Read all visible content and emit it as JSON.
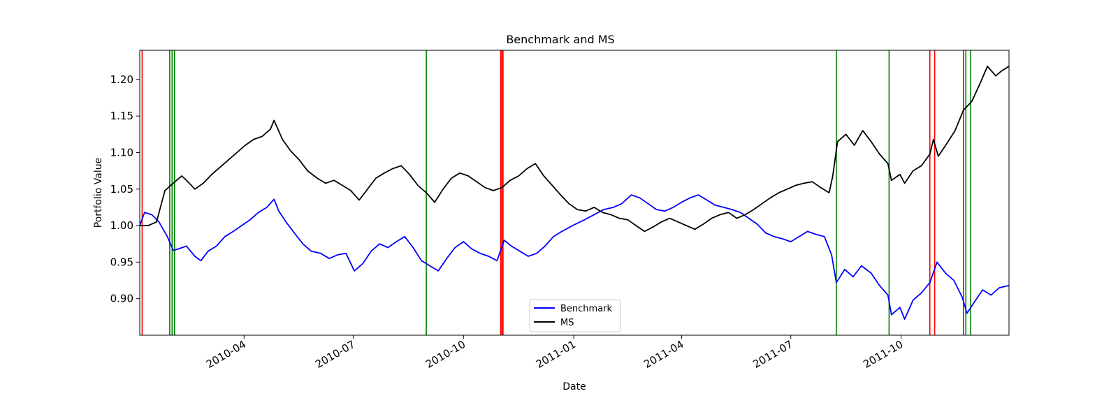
{
  "chart_data": {
    "type": "line",
    "title": "Benchmark and MS",
    "xlabel": "Date",
    "ylabel": "Portfolio Value",
    "xlim": [
      "2010-01-04",
      "2011-12-30"
    ],
    "ylim": [
      0.85,
      1.24
    ],
    "x_ticks": [
      "2010-04",
      "2010-07",
      "2010-10",
      "2011-01",
      "2011-04",
      "2011-07",
      "2011-10"
    ],
    "y_ticks": [
      "0.90",
      "0.95",
      "1.00",
      "1.05",
      "1.10",
      "1.15",
      "1.20"
    ],
    "grid": false,
    "legend": {
      "position": "lower-center",
      "entries": [
        "Benchmark",
        "MS"
      ]
    },
    "series": [
      {
        "name": "Benchmark",
        "color": "#0000ff",
        "points": [
          [
            "2010-01-04",
            1.0
          ],
          [
            "2010-01-08",
            1.018
          ],
          [
            "2010-01-14",
            1.015
          ],
          [
            "2010-01-20",
            1.005
          ],
          [
            "2010-01-27",
            0.985
          ],
          [
            "2010-02-01",
            0.966
          ],
          [
            "2010-02-05",
            0.968
          ],
          [
            "2010-02-12",
            0.972
          ],
          [
            "2010-02-19",
            0.958
          ],
          [
            "2010-02-24",
            0.952
          ],
          [
            "2010-03-02",
            0.965
          ],
          [
            "2010-03-09",
            0.972
          ],
          [
            "2010-03-16",
            0.985
          ],
          [
            "2010-03-23",
            0.992
          ],
          [
            "2010-03-30",
            1.0
          ],
          [
            "2010-04-06",
            1.008
          ],
          [
            "2010-04-13",
            1.018
          ],
          [
            "2010-04-20",
            1.025
          ],
          [
            "2010-04-26",
            1.036
          ],
          [
            "2010-04-30",
            1.02
          ],
          [
            "2010-05-06",
            1.005
          ],
          [
            "2010-05-12",
            0.992
          ],
          [
            "2010-05-20",
            0.975
          ],
          [
            "2010-05-27",
            0.965
          ],
          [
            "2010-06-04",
            0.962
          ],
          [
            "2010-06-11",
            0.955
          ],
          [
            "2010-06-18",
            0.96
          ],
          [
            "2010-06-25",
            0.962
          ],
          [
            "2010-07-02",
            0.938
          ],
          [
            "2010-07-09",
            0.948
          ],
          [
            "2010-07-16",
            0.965
          ],
          [
            "2010-07-23",
            0.975
          ],
          [
            "2010-07-30",
            0.97
          ],
          [
            "2010-08-06",
            0.978
          ],
          [
            "2010-08-13",
            0.985
          ],
          [
            "2010-08-20",
            0.97
          ],
          [
            "2010-08-27",
            0.952
          ],
          [
            "2010-09-03",
            0.945
          ],
          [
            "2010-09-10",
            0.938
          ],
          [
            "2010-09-17",
            0.955
          ],
          [
            "2010-09-24",
            0.97
          ],
          [
            "2010-10-01",
            0.978
          ],
          [
            "2010-10-08",
            0.968
          ],
          [
            "2010-10-15",
            0.962
          ],
          [
            "2010-10-22",
            0.958
          ],
          [
            "2010-10-29",
            0.952
          ],
          [
            "2010-11-04",
            0.98
          ],
          [
            "2010-11-10",
            0.972
          ],
          [
            "2010-11-17",
            0.965
          ],
          [
            "2010-11-24",
            0.958
          ],
          [
            "2010-12-01",
            0.962
          ],
          [
            "2010-12-08",
            0.972
          ],
          [
            "2010-12-15",
            0.985
          ],
          [
            "2010-12-22",
            0.992
          ],
          [
            "2010-12-31",
            1.0
          ],
          [
            "2011-01-10",
            1.008
          ],
          [
            "2011-01-18",
            1.015
          ],
          [
            "2011-01-26",
            1.022
          ],
          [
            "2011-02-03",
            1.025
          ],
          [
            "2011-02-10",
            1.03
          ],
          [
            "2011-02-18",
            1.042
          ],
          [
            "2011-02-25",
            1.038
          ],
          [
            "2011-03-04",
            1.03
          ],
          [
            "2011-03-11",
            1.022
          ],
          [
            "2011-03-18",
            1.02
          ],
          [
            "2011-03-25",
            1.025
          ],
          [
            "2011-04-01",
            1.032
          ],
          [
            "2011-04-08",
            1.038
          ],
          [
            "2011-04-15",
            1.042
          ],
          [
            "2011-04-22",
            1.035
          ],
          [
            "2011-04-29",
            1.028
          ],
          [
            "2011-05-06",
            1.025
          ],
          [
            "2011-05-13",
            1.022
          ],
          [
            "2011-05-20",
            1.018
          ],
          [
            "2011-05-27",
            1.01
          ],
          [
            "2011-06-03",
            1.002
          ],
          [
            "2011-06-10",
            0.99
          ],
          [
            "2011-06-17",
            0.985
          ],
          [
            "2011-06-24",
            0.982
          ],
          [
            "2011-07-01",
            0.978
          ],
          [
            "2011-07-08",
            0.985
          ],
          [
            "2011-07-15",
            0.992
          ],
          [
            "2011-07-22",
            0.988
          ],
          [
            "2011-07-29",
            0.985
          ],
          [
            "2011-08-04",
            0.96
          ],
          [
            "2011-08-08",
            0.922
          ],
          [
            "2011-08-15",
            0.94
          ],
          [
            "2011-08-22",
            0.93
          ],
          [
            "2011-08-29",
            0.945
          ],
          [
            "2011-09-06",
            0.935
          ],
          [
            "2011-09-13",
            0.918
          ],
          [
            "2011-09-20",
            0.905
          ],
          [
            "2011-09-23",
            0.878
          ],
          [
            "2011-09-30",
            0.888
          ],
          [
            "2011-10-04",
            0.872
          ],
          [
            "2011-10-11",
            0.898
          ],
          [
            "2011-10-18",
            0.908
          ],
          [
            "2011-10-25",
            0.922
          ],
          [
            "2011-10-31",
            0.95
          ],
          [
            "2011-11-07",
            0.935
          ],
          [
            "2011-11-14",
            0.925
          ],
          [
            "2011-11-21",
            0.902
          ],
          [
            "2011-11-25",
            0.88
          ],
          [
            "2011-12-01",
            0.895
          ],
          [
            "2011-12-08",
            0.912
          ],
          [
            "2011-12-15",
            0.905
          ],
          [
            "2011-12-22",
            0.915
          ],
          [
            "2011-12-30",
            0.918
          ]
        ]
      },
      {
        "name": "MS",
        "color": "#000000",
        "points": [
          [
            "2010-01-04",
            1.0
          ],
          [
            "2010-01-11",
            1.0
          ],
          [
            "2010-01-18",
            1.005
          ],
          [
            "2010-01-25",
            1.048
          ],
          [
            "2010-02-01",
            1.058
          ],
          [
            "2010-02-08",
            1.068
          ],
          [
            "2010-02-12",
            1.062
          ],
          [
            "2010-02-19",
            1.05
          ],
          [
            "2010-02-26",
            1.058
          ],
          [
            "2010-03-05",
            1.07
          ],
          [
            "2010-03-12",
            1.08
          ],
          [
            "2010-03-19",
            1.09
          ],
          [
            "2010-03-26",
            1.1
          ],
          [
            "2010-04-02",
            1.11
          ],
          [
            "2010-04-09",
            1.118
          ],
          [
            "2010-04-16",
            1.122
          ],
          [
            "2010-04-23",
            1.132
          ],
          [
            "2010-04-26",
            1.144
          ],
          [
            "2010-05-03",
            1.118
          ],
          [
            "2010-05-10",
            1.102
          ],
          [
            "2010-05-17",
            1.09
          ],
          [
            "2010-05-24",
            1.075
          ],
          [
            "2010-06-01",
            1.065
          ],
          [
            "2010-06-08",
            1.058
          ],
          [
            "2010-06-15",
            1.062
          ],
          [
            "2010-06-22",
            1.055
          ],
          [
            "2010-06-29",
            1.048
          ],
          [
            "2010-07-06",
            1.035
          ],
          [
            "2010-07-13",
            1.05
          ],
          [
            "2010-07-20",
            1.065
          ],
          [
            "2010-07-27",
            1.072
          ],
          [
            "2010-08-03",
            1.078
          ],
          [
            "2010-08-10",
            1.082
          ],
          [
            "2010-08-17",
            1.07
          ],
          [
            "2010-08-24",
            1.055
          ],
          [
            "2010-08-31",
            1.045
          ],
          [
            "2010-09-07",
            1.032
          ],
          [
            "2010-09-14",
            1.05
          ],
          [
            "2010-09-21",
            1.065
          ],
          [
            "2010-09-28",
            1.072
          ],
          [
            "2010-10-05",
            1.068
          ],
          [
            "2010-10-12",
            1.06
          ],
          [
            "2010-10-19",
            1.052
          ],
          [
            "2010-10-26",
            1.048
          ],
          [
            "2010-11-02",
            1.052
          ],
          [
            "2010-11-09",
            1.062
          ],
          [
            "2010-11-16",
            1.068
          ],
          [
            "2010-11-23",
            1.078
          ],
          [
            "2010-11-30",
            1.085
          ],
          [
            "2010-12-07",
            1.068
          ],
          [
            "2010-12-14",
            1.055
          ],
          [
            "2010-12-21",
            1.042
          ],
          [
            "2010-12-28",
            1.03
          ],
          [
            "2011-01-04",
            1.022
          ],
          [
            "2011-01-11",
            1.02
          ],
          [
            "2011-01-18",
            1.025
          ],
          [
            "2011-01-25",
            1.018
          ],
          [
            "2011-02-01",
            1.015
          ],
          [
            "2011-02-08",
            1.01
          ],
          [
            "2011-02-15",
            1.008
          ],
          [
            "2011-02-22",
            1.0
          ],
          [
            "2011-03-01",
            0.992
          ],
          [
            "2011-03-08",
            0.998
          ],
          [
            "2011-03-15",
            1.005
          ],
          [
            "2011-03-22",
            1.01
          ],
          [
            "2011-03-29",
            1.005
          ],
          [
            "2011-04-05",
            1.0
          ],
          [
            "2011-04-12",
            0.995
          ],
          [
            "2011-04-19",
            1.002
          ],
          [
            "2011-04-26",
            1.01
          ],
          [
            "2011-05-03",
            1.015
          ],
          [
            "2011-05-10",
            1.018
          ],
          [
            "2011-05-17",
            1.01
          ],
          [
            "2011-05-24",
            1.015
          ],
          [
            "2011-05-31",
            1.022
          ],
          [
            "2011-06-07",
            1.03
          ],
          [
            "2011-06-14",
            1.038
          ],
          [
            "2011-06-21",
            1.045
          ],
          [
            "2011-06-28",
            1.05
          ],
          [
            "2011-07-05",
            1.055
          ],
          [
            "2011-07-12",
            1.058
          ],
          [
            "2011-07-19",
            1.06
          ],
          [
            "2011-07-26",
            1.052
          ],
          [
            "2011-08-02",
            1.045
          ],
          [
            "2011-08-05",
            1.068
          ],
          [
            "2011-08-09",
            1.115
          ],
          [
            "2011-08-16",
            1.125
          ],
          [
            "2011-08-23",
            1.11
          ],
          [
            "2011-08-30",
            1.13
          ],
          [
            "2011-09-06",
            1.115
          ],
          [
            "2011-09-13",
            1.098
          ],
          [
            "2011-09-20",
            1.085
          ],
          [
            "2011-09-23",
            1.062
          ],
          [
            "2011-09-30",
            1.07
          ],
          [
            "2011-10-04",
            1.058
          ],
          [
            "2011-10-11",
            1.075
          ],
          [
            "2011-10-18",
            1.082
          ],
          [
            "2011-10-25",
            1.098
          ],
          [
            "2011-10-28",
            1.118
          ],
          [
            "2011-11-01",
            1.095
          ],
          [
            "2011-11-08",
            1.112
          ],
          [
            "2011-11-15",
            1.13
          ],
          [
            "2011-11-22",
            1.158
          ],
          [
            "2011-11-29",
            1.17
          ],
          [
            "2011-12-06",
            1.195
          ],
          [
            "2011-12-12",
            1.218
          ],
          [
            "2011-12-19",
            1.205
          ],
          [
            "2011-12-24",
            1.212
          ],
          [
            "2011-12-30",
            1.218
          ]
        ]
      }
    ],
    "vertical_markers": [
      {
        "date": "2010-01-06",
        "color": "#ff0000"
      },
      {
        "date": "2010-01-29",
        "color": "#008000"
      },
      {
        "date": "2010-01-31",
        "color": "#008000"
      },
      {
        "date": "2010-02-02",
        "color": "#008000"
      },
      {
        "date": "2010-08-31",
        "color": "#008000"
      },
      {
        "date": "2010-11-01",
        "color": "#ff0000"
      },
      {
        "date": "2010-11-02",
        "color": "#ff0000"
      },
      {
        "date": "2010-11-03",
        "color": "#ff0000"
      },
      {
        "date": "2011-08-08",
        "color": "#008000"
      },
      {
        "date": "2011-09-21",
        "color": "#008000"
      },
      {
        "date": "2011-10-25",
        "color": "#ff0000"
      },
      {
        "date": "2011-10-29",
        "color": "#ff0000"
      },
      {
        "date": "2011-11-22",
        "color": "#008000"
      },
      {
        "date": "2011-11-24",
        "color": "#008000"
      },
      {
        "date": "2011-11-28",
        "color": "#008000"
      }
    ]
  }
}
